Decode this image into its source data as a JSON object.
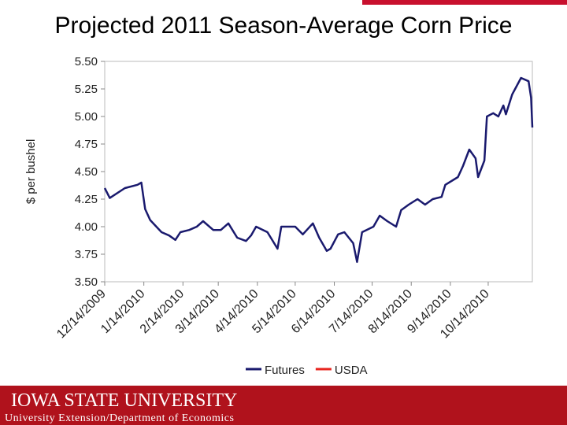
{
  "chart_data": {
    "type": "line",
    "title": "Projected 2011 Season-Average Corn Price",
    "y_label": "$ per bushel",
    "x": [
      "12/14/2009",
      "12/18/2009",
      "12/30/2009",
      "1/9/2010",
      "1/12/2010",
      "1/15/2010",
      "1/19/2010",
      "1/28/2010",
      "2/3/2010",
      "2/8/2010",
      "2/12/2010",
      "2/19/2010",
      "2/25/2010",
      "3/2/2010",
      "3/10/2010",
      "3/16/2010",
      "3/22/2010",
      "3/29/2010",
      "4/5/2010",
      "4/9/2010",
      "4/13/2010",
      "4/22/2010",
      "4/30/2010",
      "5/3/2010",
      "5/14/2010",
      "5/20/2010",
      "5/28/2010",
      "6/2/2010",
      "6/8/2010",
      "6/11/2010",
      "6/17/2010",
      "6/22/2010",
      "6/29/2010",
      "7/2/2010",
      "7/6/2010",
      "7/15/2010",
      "7/20/2010",
      "7/26/2010",
      "8/2/2010",
      "8/6/2010",
      "8/12/2010",
      "8/19/2010",
      "8/25/2010",
      "8/31/2010",
      "9/7/2010",
      "9/10/2010",
      "9/20/2010",
      "9/24/2010",
      "9/29/2010",
      "10/4/2010",
      "10/6/2010",
      "10/11/2010",
      "10/13/2010",
      "10/18/2010",
      "10/22/2010",
      "10/26/2010",
      "10/28/2010",
      "11/2/2010",
      "11/9/2010",
      "11/15/2010",
      "11/17/2010",
      "11/18/2010"
    ],
    "series": [
      {
        "name": "Futures",
        "color": "#1a1a6e",
        "values": [
          4.35,
          4.26,
          4.35,
          4.38,
          4.4,
          4.16,
          4.06,
          3.95,
          3.92,
          3.88,
          3.95,
          3.97,
          4.0,
          4.05,
          3.97,
          3.97,
          4.03,
          3.9,
          3.87,
          3.92,
          4.0,
          3.95,
          3.8,
          4.0,
          4.0,
          3.93,
          4.03,
          3.9,
          3.78,
          3.8,
          3.93,
          3.95,
          3.85,
          3.68,
          3.95,
          4.0,
          4.1,
          4.05,
          4.0,
          4.15,
          4.2,
          4.25,
          4.2,
          4.25,
          4.27,
          4.38,
          4.45,
          4.55,
          4.7,
          4.62,
          4.45,
          4.6,
          5.0,
          5.03,
          5.0,
          5.1,
          5.02,
          5.2,
          5.35,
          5.32,
          5.17,
          4.9
        ]
      },
      {
        "name": "USDA",
        "color": "#e8251f",
        "values": [
          null,
          null,
          null,
          null,
          null,
          null,
          null,
          null,
          null,
          null,
          null,
          null,
          null,
          null,
          null,
          null,
          null,
          null,
          null,
          null,
          null,
          null,
          null,
          null,
          null,
          null,
          null,
          null,
          null,
          null,
          null,
          null,
          null,
          null,
          null,
          null,
          null,
          null,
          null,
          null,
          null,
          null,
          null,
          null,
          null,
          null,
          null,
          null,
          null,
          null,
          null,
          null,
          null,
          null,
          null,
          null,
          null,
          null,
          null,
          null,
          null,
          null
        ]
      }
    ],
    "xlim": [
      "12/14/2009",
      "11/18/2010"
    ],
    "xticks": [
      "12/14/2009",
      "1/14/2010",
      "2/14/2010",
      "3/14/2010",
      "4/14/2010",
      "5/14/2010",
      "6/14/2010",
      "7/14/2010",
      "8/14/2010",
      "9/14/2010",
      "10/14/2010"
    ],
    "ylim": [
      3.5,
      5.5
    ],
    "yticks": [
      {
        "value": 3.5,
        "label": "3.50"
      },
      {
        "value": 3.75,
        "label": "3.75"
      },
      {
        "value": 4,
        "label": "4.00"
      },
      {
        "value": 4.25,
        "label": "4.25"
      },
      {
        "value": 4.5,
        "label": "4.50"
      },
      {
        "value": 4.75,
        "label": "4.75"
      },
      {
        "value": 5,
        "label": "5.00"
      },
      {
        "value": 5.25,
        "label": "5.25"
      },
      {
        "value": 5.5,
        "label": "5.50"
      }
    ],
    "legend": "bottom"
  },
  "footer": {
    "university": "IOWA STATE UNIVERSITY",
    "department": "University Extension/Department of Economics"
  }
}
